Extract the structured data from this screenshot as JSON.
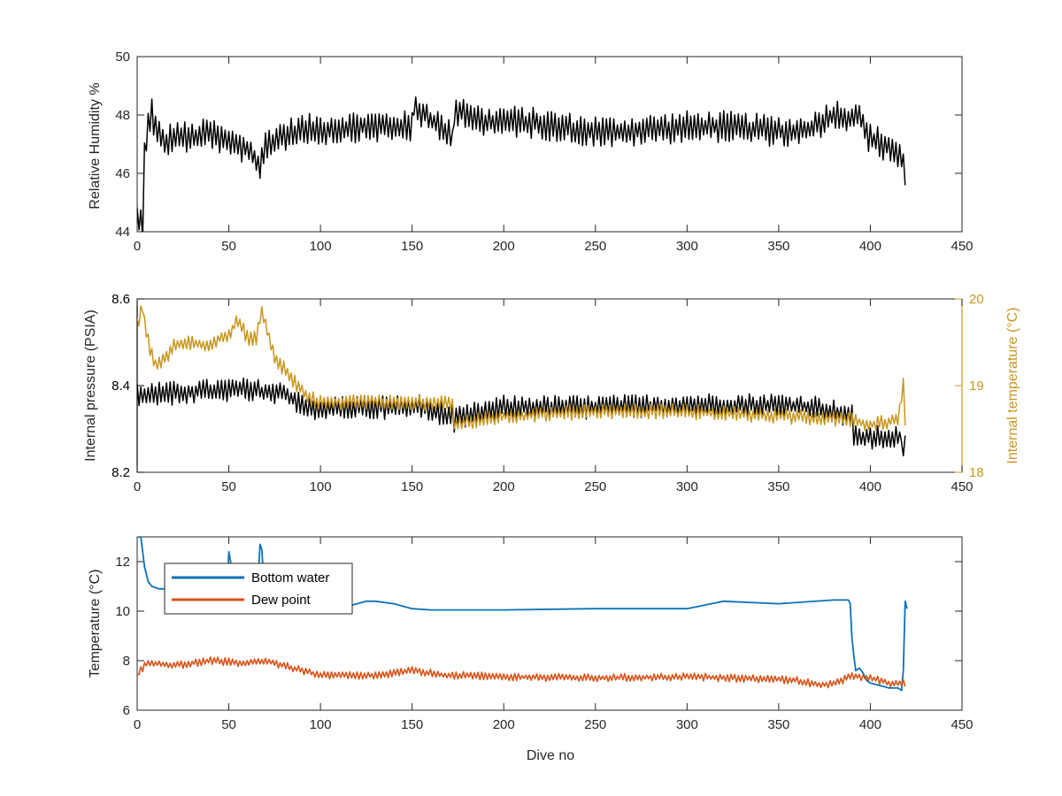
{
  "colors": {
    "axis": "#262626",
    "black_series": "#000000",
    "internal_temp": "#c8961e",
    "bottom_water": "#0b72b6",
    "dew_point": "#d95319"
  },
  "chart_data": [
    {
      "type": "line",
      "xlabel": "",
      "ylabel": "Relative Humidity %",
      "xlim": [
        0,
        450
      ],
      "ylim": [
        44,
        50
      ],
      "xticks": [
        "0",
        "50",
        "100",
        "150",
        "200",
        "250",
        "300",
        "350",
        "400",
        "450"
      ],
      "yticks": [
        "44",
        "46",
        "48",
        "50"
      ],
      "series": [
        {
          "x": [
            0,
            3,
            4,
            6,
            8,
            10,
            15,
            20,
            30,
            40,
            50,
            55,
            60,
            65,
            67,
            70,
            80,
            90,
            100,
            120,
            140,
            150,
            151,
            165,
            172,
            173,
            180,
            190,
            200,
            220,
            240,
            260,
            280,
            300,
            320,
            340,
            360,
            370,
            376,
            380,
            390,
            394,
            396,
            400,
            410,
            416,
            419
          ],
          "y": [
            44.4,
            44.3,
            46.6,
            47.8,
            48.1,
            47.5,
            47.0,
            47.3,
            47.2,
            47.4,
            47.0,
            47.0,
            46.8,
            46.4,
            46.1,
            47.0,
            47.3,
            47.5,
            47.5,
            47.6,
            47.6,
            47.6,
            48.3,
            47.6,
            47.2,
            48.2,
            48.1,
            47.7,
            47.8,
            47.7,
            47.5,
            47.4,
            47.5,
            47.6,
            47.6,
            47.5,
            47.4,
            47.6,
            47.9,
            48.0,
            47.9,
            48.1,
            47.5,
            47.2,
            46.9,
            46.6,
            46.1
          ],
          "noise": 0.55
        }
      ]
    },
    {
      "type": "line",
      "xlabel": "",
      "ylabel": "Internal pressure (PSIA)",
      "ylabel_right": "Internal temperature (°C)",
      "xlim": [
        0,
        450
      ],
      "ylim": [
        8.2,
        8.6
      ],
      "ylim_right": [
        18,
        20
      ],
      "xticks": [
        "0",
        "50",
        "100",
        "150",
        "200",
        "250",
        "300",
        "350",
        "400",
        "450"
      ],
      "yticks": [
        "8.2",
        "8.4",
        "8.6"
      ],
      "yticks_right": [
        "18",
        "19",
        "20"
      ],
      "series": [
        {
          "axis": "left",
          "x": [
            0,
            10,
            30,
            50,
            60,
            70,
            80,
            90,
            100,
            110,
            120,
            130,
            150,
            151,
            172,
            173,
            180,
            190,
            200,
            250,
            300,
            350,
            370,
            390,
            391,
            400,
            410,
            417,
            418,
            419
          ],
          "y": [
            8.38,
            8.38,
            8.385,
            8.39,
            8.39,
            8.385,
            8.38,
            8.36,
            8.34,
            8.35,
            8.35,
            8.35,
            8.35,
            8.355,
            8.33,
            8.32,
            8.33,
            8.34,
            8.35,
            8.35,
            8.355,
            8.355,
            8.35,
            8.33,
            8.28,
            8.28,
            8.28,
            8.28,
            8.22,
            8.3
          ],
          "noise": 0.028
        },
        {
          "axis": "right",
          "x": [
            0,
            3,
            5,
            8,
            10,
            15,
            20,
            25,
            30,
            40,
            45,
            50,
            55,
            60,
            65,
            68,
            70,
            75,
            80,
            85,
            90,
            95,
            100,
            120,
            150,
            172,
            173,
            200,
            250,
            300,
            350,
            380,
            390,
            400,
            415,
            418,
            419
          ],
          "y": [
            19.7,
            19.9,
            19.6,
            19.35,
            19.25,
            19.3,
            19.45,
            19.5,
            19.5,
            19.45,
            19.55,
            19.6,
            19.75,
            19.55,
            19.55,
            19.85,
            19.7,
            19.3,
            19.2,
            19.05,
            18.95,
            18.85,
            18.8,
            18.82,
            18.8,
            18.8,
            18.55,
            18.65,
            18.7,
            18.7,
            18.65,
            18.62,
            18.6,
            18.55,
            18.6,
            19.05,
            18.6
          ],
          "noise": 0.09
        }
      ]
    },
    {
      "type": "line",
      "xlabel": "Dive no",
      "ylabel": "Temperature (°C)",
      "xlim": [
        0,
        450
      ],
      "ylim": [
        6,
        13
      ],
      "xticks": [
        "0",
        "50",
        "100",
        "150",
        "200",
        "250",
        "300",
        "350",
        "400",
        "450"
      ],
      "yticks": [
        "6",
        "8",
        "10",
        "12"
      ],
      "legend": "top-left",
      "series": [
        {
          "name": "Bottom water",
          "x": [
            0,
            2,
            4,
            6,
            8,
            12,
            20,
            30,
            40,
            49,
            50,
            51,
            52,
            60,
            66,
            67,
            68,
            69,
            70,
            80,
            90,
            100,
            110,
            120,
            125,
            130,
            140,
            150,
            160,
            200,
            250,
            300,
            320,
            350,
            380,
            388,
            389,
            390,
            391,
            392,
            394,
            396,
            398,
            400,
            405,
            410,
            415,
            417,
            418,
            419,
            420
          ],
          "y": [
            13.0,
            13.0,
            11.8,
            11.2,
            11.0,
            10.9,
            10.9,
            10.9,
            10.9,
            10.9,
            12.4,
            12.0,
            10.9,
            10.9,
            11.2,
            12.7,
            12.5,
            11.3,
            10.9,
            10.5,
            10.2,
            10.1,
            10.1,
            10.3,
            10.4,
            10.4,
            10.3,
            10.1,
            10.05,
            10.05,
            10.1,
            10.1,
            10.4,
            10.3,
            10.45,
            10.45,
            10.3,
            8.9,
            8.2,
            7.6,
            7.7,
            7.5,
            7.2,
            7.1,
            7.0,
            6.9,
            6.9,
            6.8,
            7.6,
            10.4,
            10.1
          ],
          "noise": 0
        },
        {
          "name": "Dew point",
          "x": [
            0,
            5,
            10,
            20,
            30,
            40,
            50,
            60,
            70,
            80,
            90,
            100,
            110,
            120,
            130,
            140,
            150,
            160,
            170,
            180,
            200,
            250,
            300,
            350,
            360,
            370,
            380,
            390,
            400,
            410,
            419
          ],
          "y": [
            7.4,
            7.9,
            7.9,
            7.8,
            7.9,
            8.0,
            7.95,
            7.9,
            8.0,
            7.8,
            7.6,
            7.4,
            7.4,
            7.4,
            7.4,
            7.5,
            7.6,
            7.5,
            7.4,
            7.4,
            7.35,
            7.3,
            7.35,
            7.25,
            7.2,
            7.05,
            7.05,
            7.4,
            7.3,
            7.1,
            7.1
          ],
          "noise": 0.16
        }
      ]
    }
  ]
}
